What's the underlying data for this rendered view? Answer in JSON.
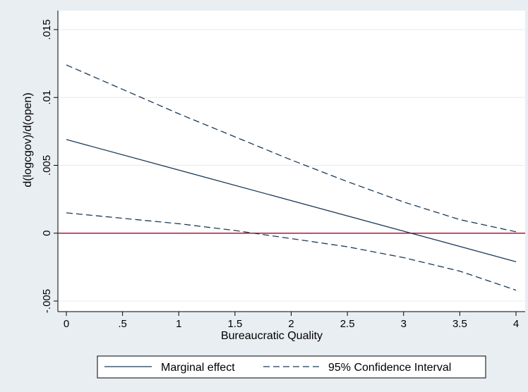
{
  "chart_data": {
    "type": "line",
    "title": "",
    "xlabel": "Bureaucratic Quality",
    "ylabel": "d(logcgov)/d(open)",
    "xlim": [
      0,
      4
    ],
    "ylim": [
      -0.005,
      0.015
    ],
    "x_ticks": [
      0,
      0.5,
      1,
      1.5,
      2,
      2.5,
      3,
      3.5,
      4
    ],
    "x_tick_labels": [
      "0",
      ".5",
      "1",
      "1.5",
      "2",
      "2.5",
      "3",
      "3.5",
      "4"
    ],
    "y_ticks": [
      -0.005,
      0,
      0.005,
      0.01,
      0.015
    ],
    "y_tick_labels": [
      "-.005",
      "0",
      ".005",
      ".01",
      ".015"
    ],
    "grid": "horizontal",
    "legend_position": "bottom",
    "reference_line": {
      "y": 0,
      "color": "#b0173a"
    },
    "series": [
      {
        "name": "Marginal effect",
        "style": "solid",
        "x": [
          0,
          4
        ],
        "values": [
          0.0069,
          -0.0021
        ]
      },
      {
        "name": "95% Confidence Interval",
        "style": "dashed",
        "x": [
          0,
          0.5,
          1,
          1.5,
          2,
          2.5,
          3,
          3.5,
          4
        ],
        "values": [
          0.0124,
          0.0106,
          0.0088,
          0.0071,
          0.0054,
          0.0038,
          0.0023,
          0.001,
          0.0001
        ]
      },
      {
        "name": "",
        "style": "dashed",
        "x": [
          0,
          0.5,
          1,
          1.5,
          2,
          2.5,
          3,
          3.5,
          4
        ],
        "values": [
          0.0015,
          0.0011,
          0.0007,
          0.0002,
          -0.0004,
          -0.001,
          -0.0018,
          -0.0028,
          -0.0042
        ]
      }
    ],
    "legend": [
      "Marginal effect",
      "95% Confidence Interval"
    ],
    "colors": {
      "outer_bg": "#e9eef3",
      "plot_bg": "#ffffff",
      "line": "#1c3b57",
      "grid": "#e6ebef"
    }
  }
}
